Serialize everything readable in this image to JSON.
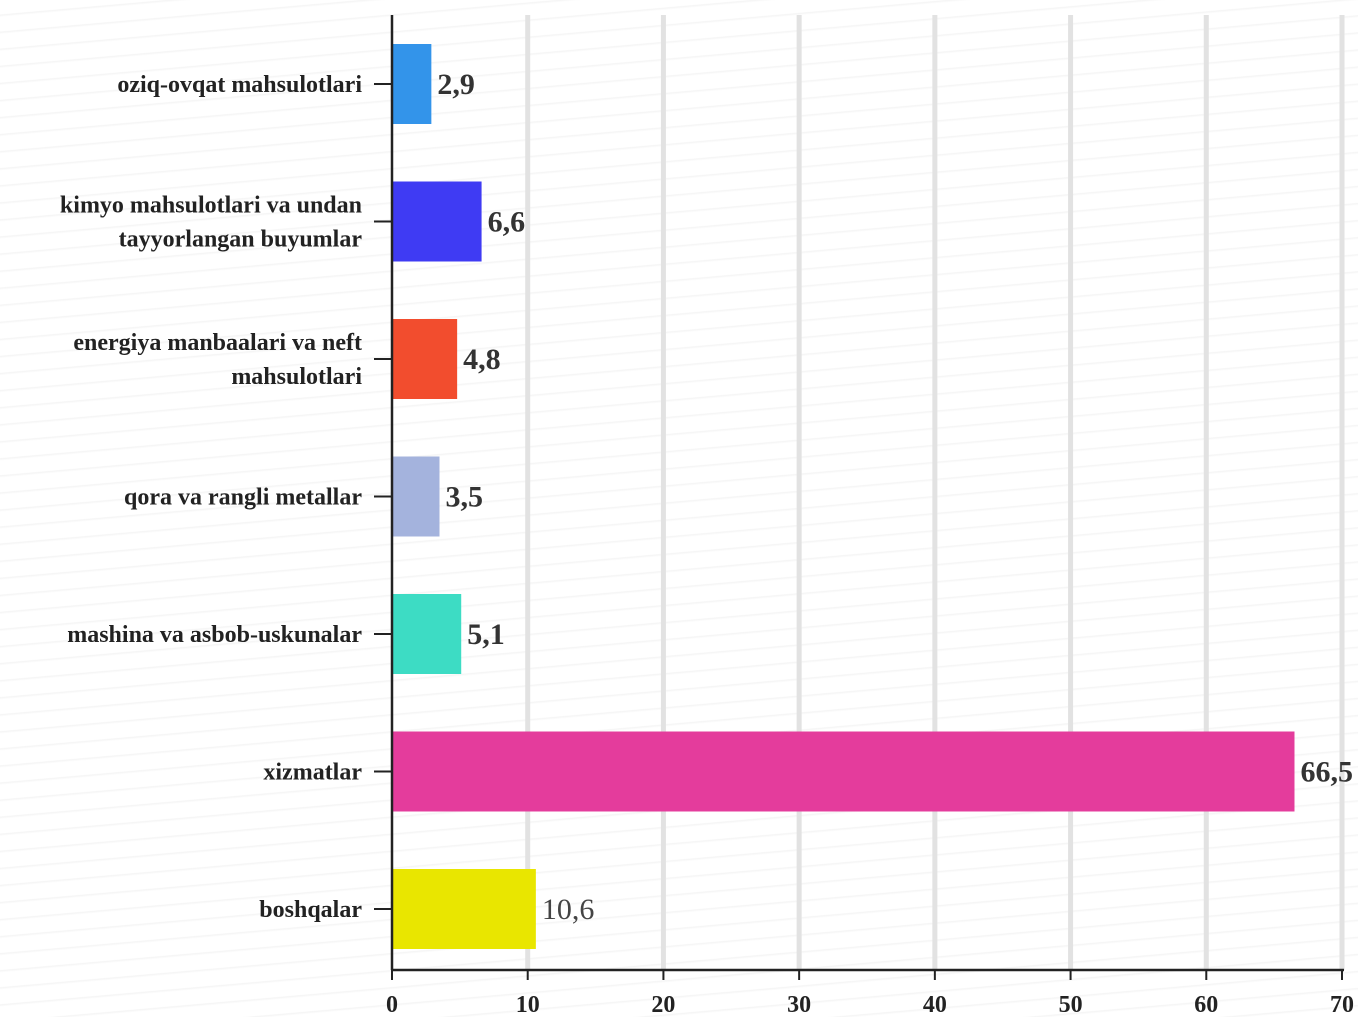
{
  "chart_data": {
    "type": "bar",
    "orientation": "horizontal",
    "title": "",
    "xlabel": "",
    "ylabel": "",
    "xlim": [
      0,
      70
    ],
    "ticks": [
      0,
      10,
      20,
      30,
      40,
      50,
      60,
      70
    ],
    "tick_labels": [
      "0",
      "10",
      "20",
      "30",
      "40",
      "50",
      "60",
      "70"
    ],
    "grid": true,
    "legend": "none",
    "categories": [
      [
        "oziq-ovqat mahsulotlari"
      ],
      [
        "kimyo mahsulotlari va undan",
        "tayyorlangan buyumlar"
      ],
      [
        "energiya manbaalari va neft",
        "mahsulotlari"
      ],
      [
        "qora va rangli metallar"
      ],
      [
        "mashina va asbob-uskunalar"
      ],
      [
        "xizmatlar"
      ],
      [
        "boshqalar"
      ]
    ],
    "values": [
      2.9,
      6.6,
      4.8,
      3.5,
      5.1,
      66.5,
      10.6
    ],
    "value_labels": [
      "2,9",
      "6,6",
      "4,8",
      "3,5",
      "5,1",
      "66,5",
      "10,6"
    ],
    "value_label_bold": [
      true,
      true,
      true,
      true,
      true,
      true,
      false
    ],
    "colors": [
      "#3394ea",
      "#3f3bf3",
      "#f24d2e",
      "#a4b3dd",
      "#3ddcc4",
      "#e43c9c",
      "#e9e600"
    ]
  }
}
